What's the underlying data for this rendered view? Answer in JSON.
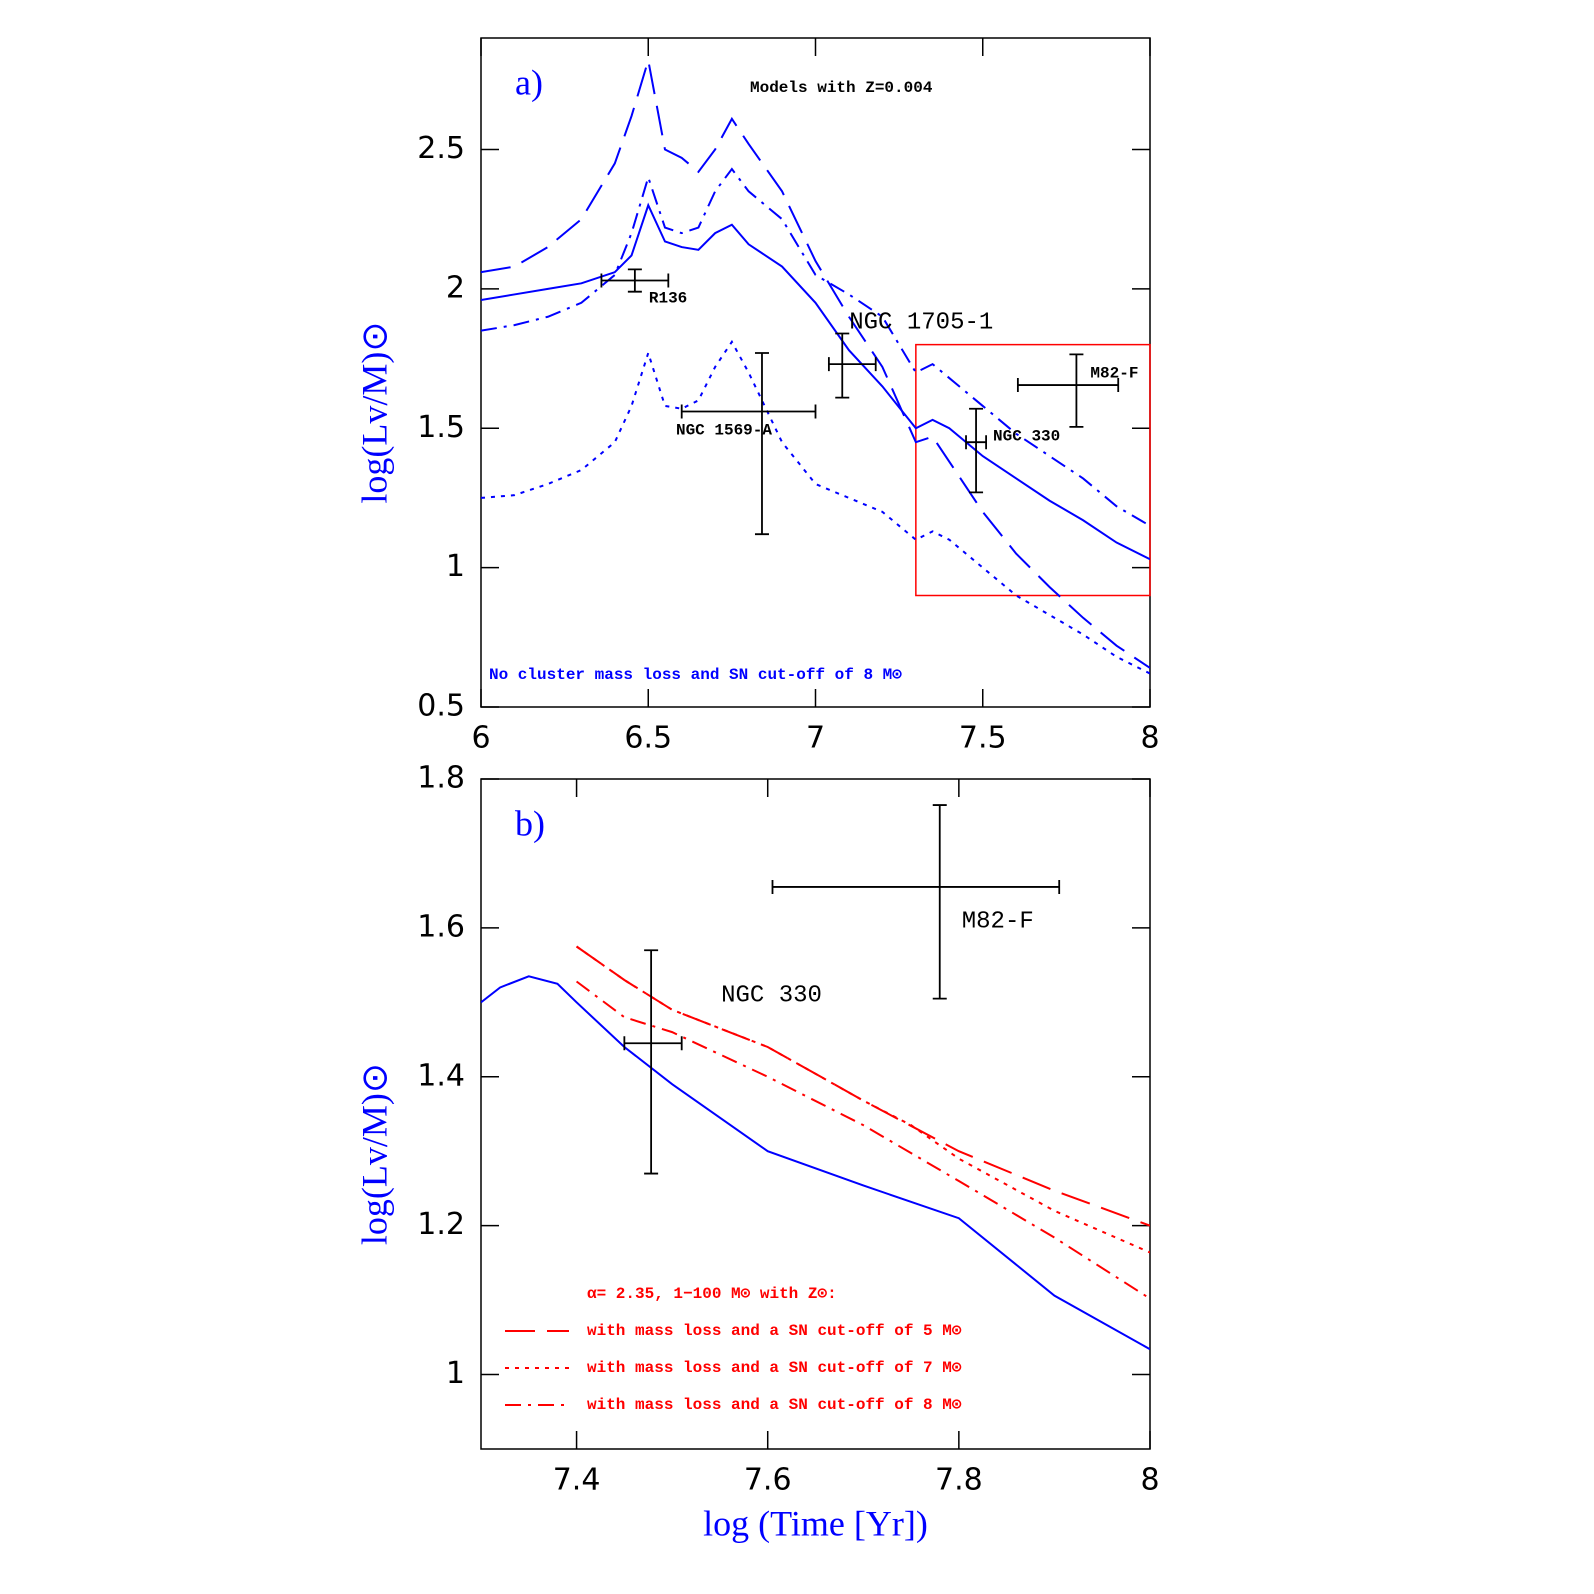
{
  "chart_data": [
    {
      "type": "line",
      "panel_label": "a)",
      "title": "Models with Z=0.004",
      "note": "No cluster mass loss and SN cut-off of 8 M⊙",
      "ylabel": "log(Lv/M)⊙",
      "xlim": [
        6,
        8
      ],
      "ylim": [
        0.5,
        2.9
      ],
      "xticks": [
        6,
        6.5,
        7,
        7.5,
        8
      ],
      "yticks": [
        0.5,
        1,
        1.5,
        2,
        2.5
      ],
      "x": [
        6.0,
        6.1,
        6.2,
        6.3,
        6.4,
        6.45,
        6.5,
        6.55,
        6.6,
        6.65,
        6.7,
        6.75,
        6.8,
        6.9,
        7.0,
        7.1,
        7.2,
        7.3,
        7.35,
        7.4,
        7.5,
        7.6,
        7.7,
        7.8,
        7.9,
        8.0
      ],
      "series": [
        {
          "color": "#0000ff",
          "dash": "long-dash",
          "values": [
            2.06,
            2.08,
            2.15,
            2.25,
            2.45,
            2.62,
            2.82,
            2.5,
            2.47,
            2.42,
            2.5,
            2.61,
            2.52,
            2.35,
            2.1,
            1.9,
            1.72,
            1.45,
            1.47,
            1.38,
            1.2,
            1.05,
            0.93,
            0.82,
            0.72,
            0.64
          ]
        },
        {
          "color": "#0000ff",
          "dash": "solid",
          "values": [
            1.96,
            1.98,
            2.0,
            2.02,
            2.06,
            2.12,
            2.3,
            2.17,
            2.15,
            2.14,
            2.2,
            2.23,
            2.16,
            2.08,
            1.95,
            1.78,
            1.65,
            1.5,
            1.53,
            1.5,
            1.4,
            1.32,
            1.24,
            1.17,
            1.09,
            1.03
          ]
        },
        {
          "color": "#0000ff",
          "dash": "dash-dot",
          "values": [
            1.85,
            1.87,
            1.9,
            1.95,
            2.05,
            2.2,
            2.4,
            2.22,
            2.2,
            2.22,
            2.35,
            2.43,
            2.35,
            2.25,
            2.05,
            1.98,
            1.9,
            1.7,
            1.73,
            1.68,
            1.58,
            1.48,
            1.4,
            1.32,
            1.22,
            1.15
          ]
        },
        {
          "color": "#0000ff",
          "dash": "dotted",
          "values": [
            1.25,
            1.26,
            1.3,
            1.35,
            1.45,
            1.58,
            1.77,
            1.58,
            1.57,
            1.6,
            1.72,
            1.81,
            1.7,
            1.45,
            1.3,
            1.25,
            1.2,
            1.1,
            1.13,
            1.1,
            1.0,
            0.9,
            0.83,
            0.76,
            0.68,
            0.62
          ]
        }
      ],
      "errorbars": [
        {
          "label": "R136",
          "x": 6.46,
          "y": 2.03,
          "xerr": [
            0.1,
            0.1
          ],
          "yerr": [
            0.04,
            0.04
          ]
        },
        {
          "label": "NGC 1569-A",
          "x": 6.84,
          "y": 1.56,
          "xerr": [
            0.24,
            0.16
          ],
          "yerr": [
            0.44,
            0.21
          ]
        },
        {
          "label": "NGC 1705-1",
          "x": 7.08,
          "y": 1.73,
          "xerr": [
            0.04,
            0.1
          ],
          "yerr": [
            0.12,
            0.11
          ]
        },
        {
          "label": "NGC 330",
          "x": 7.48,
          "y": 1.45,
          "xerr": [
            0.03,
            0.03
          ],
          "yerr": [
            0.18,
            0.12
          ]
        },
        {
          "label": "M82-F",
          "x": 7.78,
          "y": 1.655,
          "xerr": [
            0.175,
            0.125
          ],
          "yerr": [
            0.15,
            0.11
          ]
        }
      ],
      "box": {
        "color": "#ff0000",
        "xlim": [
          7.3,
          8
        ],
        "ylim": [
          0.9,
          1.8
        ]
      }
    },
    {
      "type": "line",
      "panel_label": "b)",
      "ylabel": "log(Lv/M)⊙",
      "xlabel": "log (Time [Yr])",
      "xlim": [
        7.3,
        8
      ],
      "ylim": [
        0.9,
        1.8
      ],
      "xticks": [
        7.4,
        7.6,
        7.8,
        8
      ],
      "yticks": [
        1,
        1.2,
        1.4,
        1.6,
        1.8
      ],
      "legend_title": "α= 2.35, 1−100 M⊙ with Z⊙:",
      "legend": "lower left",
      "series": [
        {
          "color": "#0000ff",
          "dash": "solid",
          "x": [
            7.3,
            7.32,
            7.35,
            7.38,
            7.4,
            7.45,
            7.5,
            7.6,
            7.7,
            7.8,
            7.9,
            8.0
          ],
          "values": [
            1.5,
            1.52,
            1.535,
            1.525,
            1.5,
            1.44,
            1.39,
            1.3,
            1.254,
            1.21,
            1.106,
            1.034
          ]
        },
        {
          "name": "with mass loss and a SN cut-off of 5 M⊙",
          "color": "#ff0000",
          "dash": "long-dash",
          "x": [
            7.4,
            7.45,
            7.5,
            7.6,
            7.7,
            7.8,
            7.9,
            8.0
          ],
          "values": [
            1.575,
            1.53,
            1.49,
            1.44,
            1.368,
            1.3,
            1.247,
            1.2
          ]
        },
        {
          "name": "with mass loss and a SN cut-off of 7 M⊙",
          "color": "#ff0000",
          "dash": "dotted",
          "x": [
            7.4,
            7.45,
            7.5,
            7.6,
            7.7,
            7.75,
            7.8,
            7.9,
            8.0
          ],
          "values": [
            1.575,
            1.53,
            1.49,
            1.44,
            1.368,
            1.335,
            1.29,
            1.22,
            1.164
          ]
        },
        {
          "name": "with mass loss and a SN cut-off of 8 M⊙",
          "color": "#ff0000",
          "dash": "dash-dot",
          "x": [
            7.4,
            7.45,
            7.5,
            7.6,
            7.7,
            7.8,
            7.9,
            8.0
          ],
          "values": [
            1.528,
            1.48,
            1.46,
            1.4,
            1.335,
            1.26,
            1.184,
            1.102
          ]
        }
      ],
      "errorbars": [
        {
          "label": "NGC 330",
          "x": 7.478,
          "y": 1.445,
          "xerr": [
            0.028,
            0.032
          ],
          "yerr": [
            0.175,
            0.125
          ]
        },
        {
          "label": "M82-F",
          "x": 7.78,
          "y": 1.655,
          "xerr": [
            0.175,
            0.125
          ],
          "yerr": [
            0.15,
            0.11
          ]
        }
      ]
    }
  ]
}
